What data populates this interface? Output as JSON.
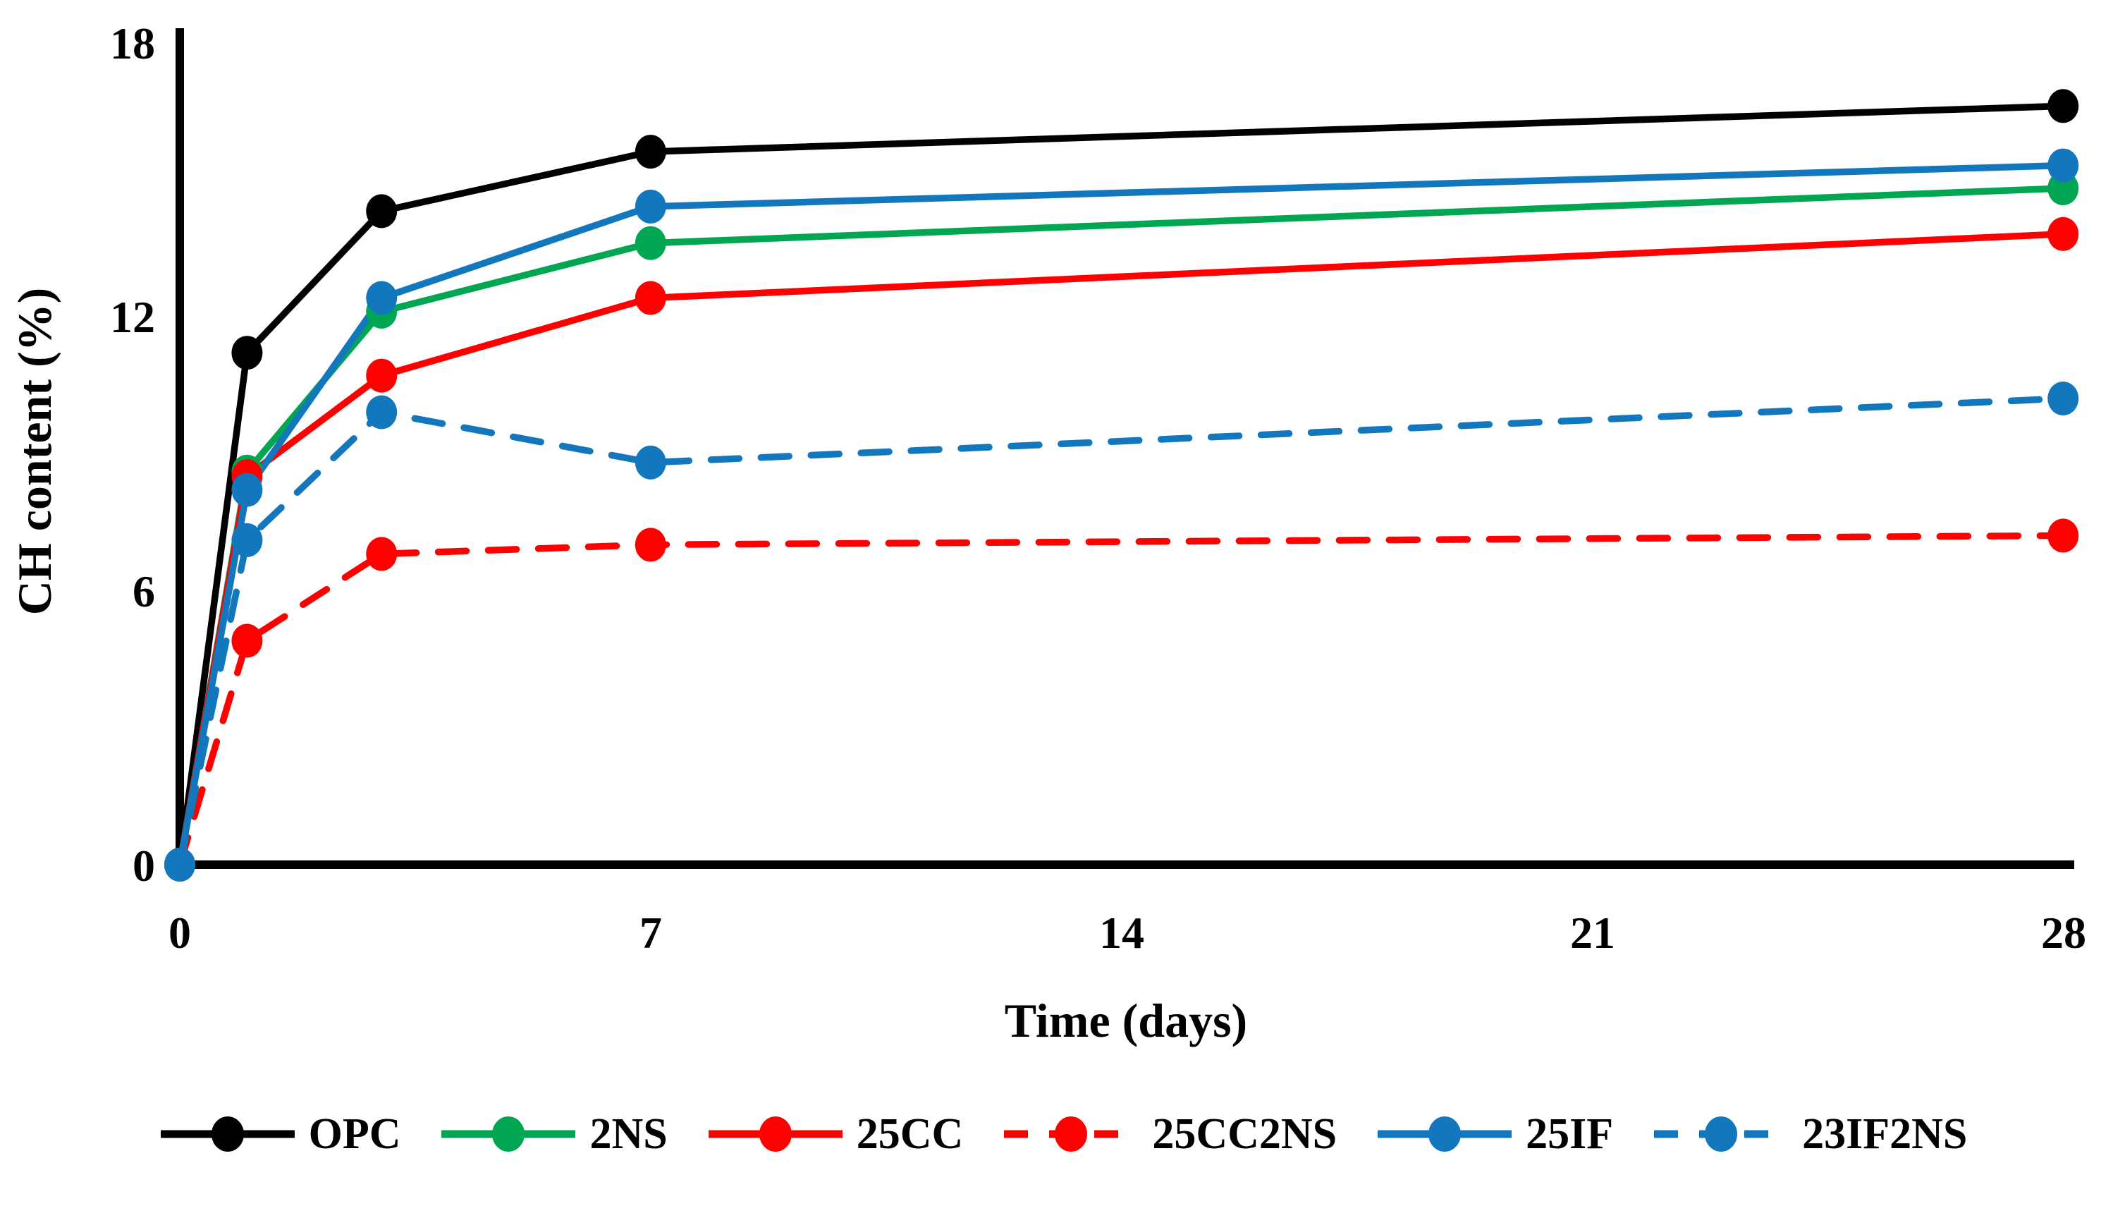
{
  "figure": {
    "background": "#ffffff",
    "axis_color": "#000000"
  },
  "chart_data": {
    "type": "line",
    "title": "",
    "xlabel": "Time (days)",
    "ylabel": "CH content (%)",
    "x": [
      0,
      1,
      3,
      7,
      28
    ],
    "xlim": [
      0,
      28
    ],
    "ylim": [
      0,
      18
    ],
    "xticks": [
      "0",
      "7",
      "14",
      "21",
      "28"
    ],
    "yticks": [
      "0",
      "6",
      "12",
      "18"
    ],
    "grid": false,
    "legend_position": "bottom",
    "series": [
      {
        "name": "OPC",
        "color": "#000000",
        "style": "solid",
        "marker": "circle",
        "values": [
          0,
          11.2,
          14.3,
          15.6,
          16.6
        ]
      },
      {
        "name": "2NS",
        "color": "#00A651",
        "style": "solid",
        "marker": "circle",
        "values": [
          0,
          8.6,
          12.1,
          13.6,
          14.8
        ]
      },
      {
        "name": "25CC",
        "color": "#FE0000",
        "style": "solid",
        "marker": "circle",
        "values": [
          0,
          8.5,
          10.7,
          12.4,
          13.8
        ]
      },
      {
        "name": "25CC2NS",
        "color": "#FE0000",
        "style": "dashed",
        "marker": "circle",
        "values": [
          0,
          4.9,
          6.8,
          7.0,
          7.2
        ]
      },
      {
        "name": "25IF",
        "color": "#1377BD",
        "style": "solid",
        "marker": "circle",
        "values": [
          0,
          8.2,
          12.4,
          14.4,
          15.3
        ]
      },
      {
        "name": "23IF2NS",
        "color": "#1377BD",
        "style": "dashed",
        "marker": "circle",
        "values": [
          0,
          7.1,
          9.9,
          8.8,
          10.2
        ]
      }
    ]
  }
}
